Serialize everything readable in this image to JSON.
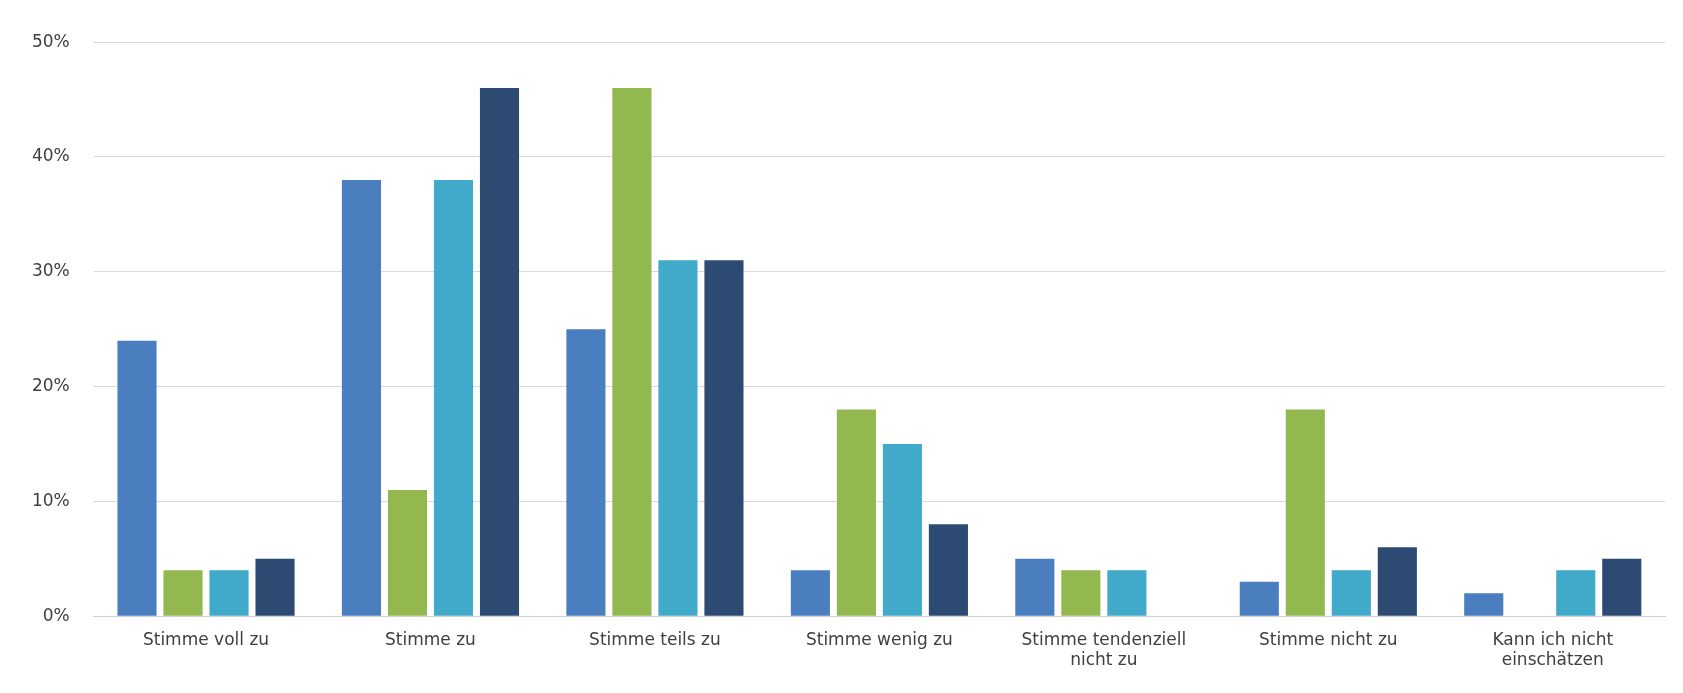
{
  "chart_data": {
    "type": "bar",
    "categories": [
      "Stimme voll zu",
      "Stimme zu",
      "Stimme teils zu",
      "Stimme wenig zu",
      "Stimme tendenziell nicht zu",
      "Stimme nicht zu",
      "Kann ich nicht einschätzen"
    ],
    "series": [
      {
        "color": "#4a7ebf",
        "values": [
          24,
          38,
          25,
          4,
          5,
          3,
          2
        ]
      },
      {
        "color": "#93b84f",
        "values": [
          4,
          11,
          46,
          18,
          4,
          18,
          null
        ]
      },
      {
        "color": "#41a9c9",
        "values": [
          4,
          38,
          31,
          15,
          4,
          4,
          4
        ]
      },
      {
        "color": "#2d4a72",
        "values": [
          5,
          46,
          31,
          8,
          null,
          6,
          5
        ]
      }
    ],
    "ylim": [
      0,
      50
    ],
    "yticks": [
      {
        "value": 0,
        "label": "0%"
      },
      {
        "value": 10,
        "label": "10%"
      },
      {
        "value": 20,
        "label": "20%"
      },
      {
        "value": 30,
        "label": "30%"
      },
      {
        "value": 40,
        "label": "40%"
      },
      {
        "value": 50,
        "label": "50%"
      }
    ],
    "grid": "y",
    "legend": false
  }
}
